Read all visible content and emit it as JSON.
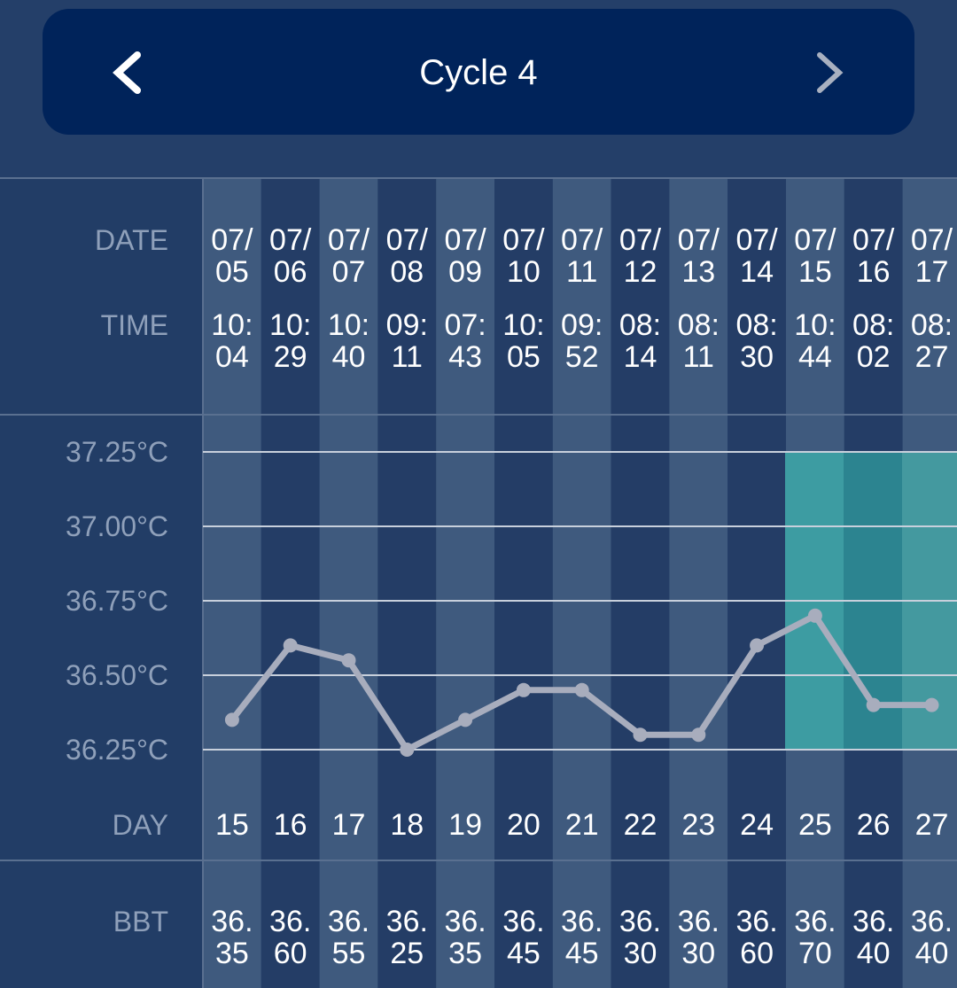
{
  "header": {
    "title": "Cycle 4"
  },
  "table": {
    "labels": {
      "date": "DATE",
      "time": "TIME"
    },
    "dates": [
      "07/05",
      "07/06",
      "07/07",
      "07/08",
      "07/09",
      "07/10",
      "07/11",
      "07/12",
      "07/13",
      "07/14",
      "07/15",
      "07/16",
      "07/17"
    ],
    "times": [
      "10:04",
      "10:29",
      "10:40",
      "09:11",
      "07:43",
      "10:05",
      "09:52",
      "08:14",
      "08:11",
      "08:30",
      "10:44",
      "08:02",
      "08:27"
    ]
  },
  "chart_data": {
    "type": "line",
    "x_label": "DAY",
    "categories": [
      15,
      16,
      17,
      18,
      19,
      20,
      21,
      22,
      23,
      24,
      25,
      26,
      27
    ],
    "series": [
      {
        "name": "BBT",
        "color": "#a8adbd",
        "values": [
          36.35,
          36.6,
          36.55,
          36.25,
          36.35,
          36.45,
          36.45,
          36.3,
          36.3,
          36.6,
          36.7,
          36.4,
          36.4
        ],
        "value_labels": [
          "36.35",
          "36.60",
          "36.55",
          "36.25",
          "36.35",
          "36.45",
          "36.45",
          "36.30",
          "36.30",
          "36.60",
          "36.70",
          "36.40",
          "36.40"
        ]
      }
    ],
    "ylim": [
      36.25,
      37.25
    ],
    "yticks": [
      {
        "value": 36.25,
        "label": "36.25°C"
      },
      {
        "value": 36.5,
        "label": "36.50°C"
      },
      {
        "value": 36.75,
        "label": "36.75°C"
      },
      {
        "value": 37.0,
        "label": "37.00°C"
      },
      {
        "value": 37.25,
        "label": "37.25°C"
      }
    ],
    "grid": true
  }
}
